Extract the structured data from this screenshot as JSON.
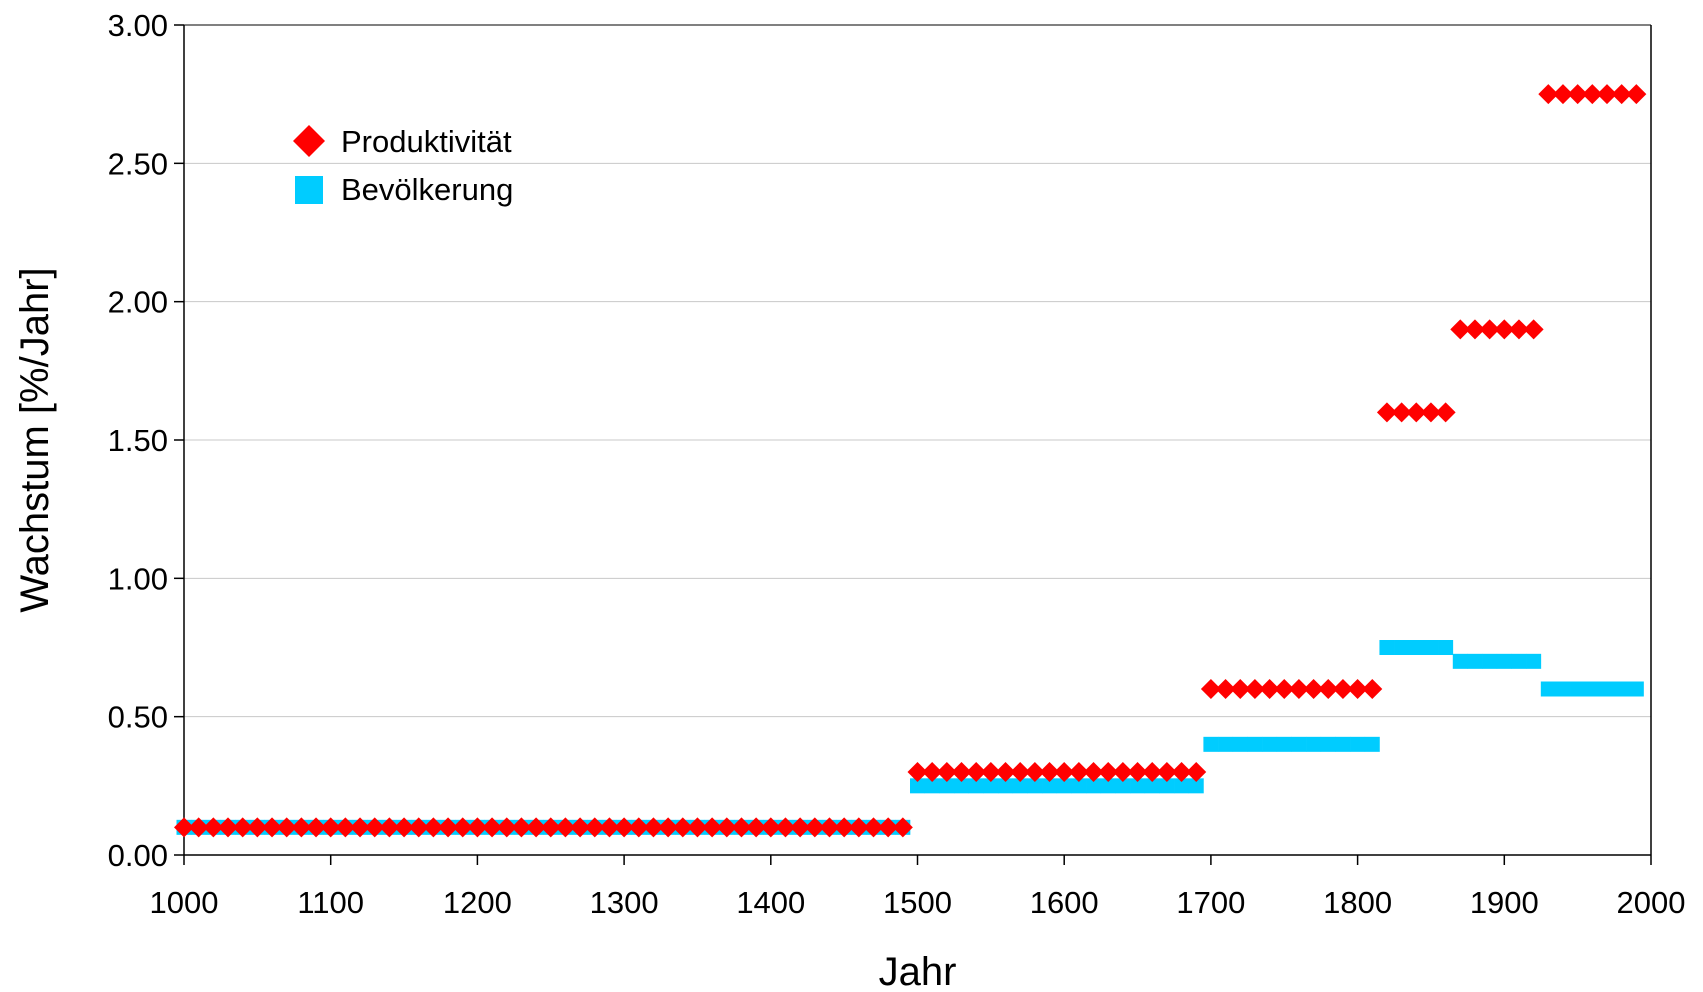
{
  "chart_data": {
    "type": "scatter",
    "xlabel": "Jahr",
    "ylabel": "Wachstum [%/Jahr]",
    "xlim": [
      1000,
      2000
    ],
    "ylim": [
      0,
      3
    ],
    "x_ticks": [
      "1000",
      "1100",
      "1200",
      "1300",
      "1400",
      "1500",
      "1600",
      "1700",
      "1800",
      "1900",
      "2000"
    ],
    "y_ticks": [
      "0.00",
      "0.50",
      "1.00",
      "1.50",
      "2.00",
      "2.50",
      "3.00"
    ],
    "grid": "horizontal",
    "legend_position": "top-left",
    "series": [
      {
        "name": "Produktivität",
        "marker": "diamond",
        "color": "#ff0000",
        "segments": [
          {
            "x_start": 1000,
            "x_end": 1490,
            "step": 10,
            "y": 0.1
          },
          {
            "x_start": 1500,
            "x_end": 1690,
            "step": 10,
            "y": 0.3
          },
          {
            "x_start": 1700,
            "x_end": 1810,
            "step": 10,
            "y": 0.6
          },
          {
            "x_start": 1820,
            "x_end": 1860,
            "step": 10,
            "y": 1.6
          },
          {
            "x_start": 1870,
            "x_end": 1920,
            "step": 10,
            "y": 1.9
          },
          {
            "x_start": 1930,
            "x_end": 1990,
            "step": 10,
            "y": 2.75
          }
        ]
      },
      {
        "name": "Bevölkerung",
        "marker": "square",
        "color": "#00ccff",
        "segments": [
          {
            "x_start": 1000,
            "x_end": 1490,
            "step": 10,
            "y": 0.1
          },
          {
            "x_start": 1500,
            "x_end": 1690,
            "step": 10,
            "y": 0.25
          },
          {
            "x_start": 1700,
            "x_end": 1810,
            "step": 10,
            "y": 0.4
          },
          {
            "x_start": 1820,
            "x_end": 1860,
            "step": 10,
            "y": 0.75
          },
          {
            "x_start": 1870,
            "x_end": 1920,
            "step": 10,
            "y": 0.7
          },
          {
            "x_start": 1930,
            "x_end": 1990,
            "step": 10,
            "y": 0.6
          }
        ]
      }
    ]
  }
}
